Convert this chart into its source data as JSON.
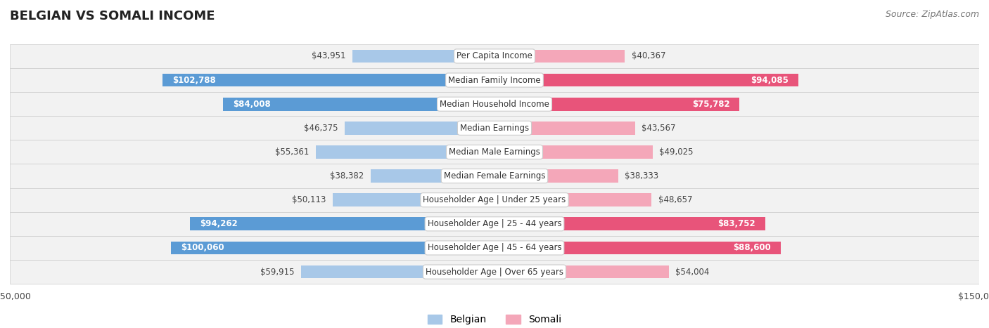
{
  "title": "BELGIAN VS SOMALI INCOME",
  "source": "Source: ZipAtlas.com",
  "categories": [
    "Per Capita Income",
    "Median Family Income",
    "Median Household Income",
    "Median Earnings",
    "Median Male Earnings",
    "Median Female Earnings",
    "Householder Age | Under 25 years",
    "Householder Age | 25 - 44 years",
    "Householder Age | 45 - 64 years",
    "Householder Age | Over 65 years"
  ],
  "belgian_values": [
    43951,
    102788,
    84008,
    46375,
    55361,
    38382,
    50113,
    94262,
    100060,
    59915
  ],
  "somali_values": [
    40367,
    94085,
    75782,
    43567,
    49025,
    38333,
    48657,
    83752,
    88600,
    54004
  ],
  "belgian_color_dark": "#5B9BD5",
  "belgian_color_light": "#A8C8E8",
  "somali_color_dark": "#E8547A",
  "somali_color_light": "#F4A7B9",
  "label_color_dark_bg": "#FFFFFF",
  "label_color_light_bg": "#555555",
  "bg_row_color": "#F2F2F2",
  "max_value": 150000,
  "bar_height": 0.55,
  "row_bg_alpha": 1.0,
  "title_fontsize": 13,
  "label_fontsize": 8.5,
  "value_fontsize": 8.5,
  "legend_fontsize": 10,
  "source_fontsize": 9
}
